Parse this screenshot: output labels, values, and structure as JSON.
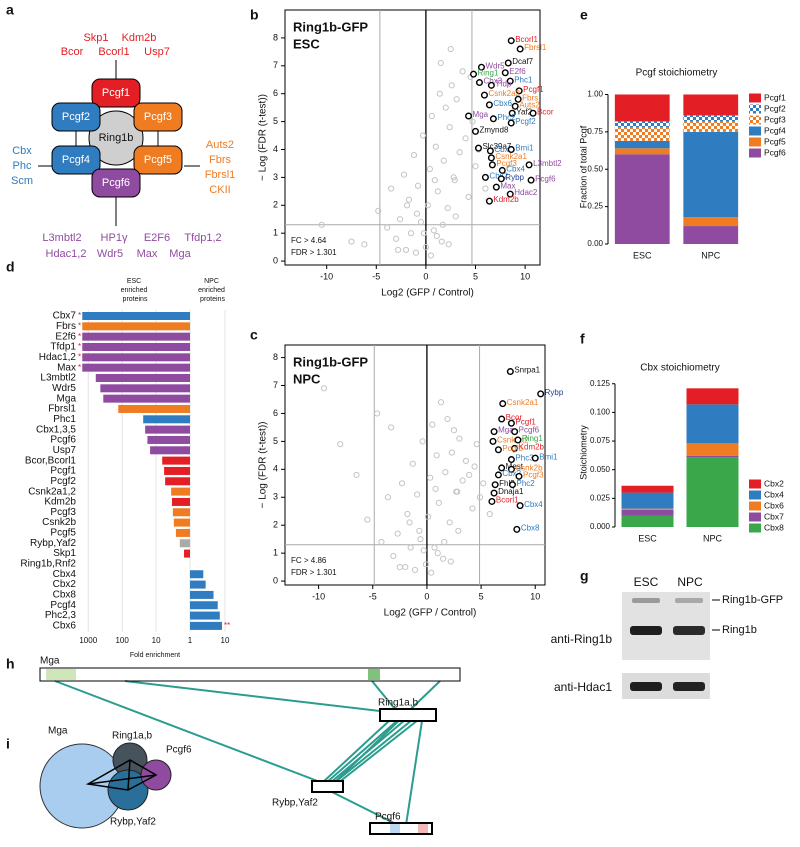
{
  "panel_labels": [
    "a",
    "b",
    "c",
    "d",
    "e",
    "f",
    "g",
    "h",
    "i"
  ],
  "complex_diagram": {
    "center": "Ring1b",
    "pcgf": [
      "Pcgf1",
      "Pcgf2",
      "Pcgf3",
      "Pcgf4",
      "Pcgf5",
      "Pcgf6"
    ],
    "top": [
      [
        "Skp1",
        "Kdm2b"
      ],
      [
        "Bcor",
        "Bcorl1",
        "Usp7"
      ]
    ],
    "left": [
      "Cbx",
      "Phc",
      "Scm"
    ],
    "right": [
      "Auts2",
      "Fbrs",
      "Fbrsl1",
      "CKII"
    ],
    "bottom": [
      [
        "L3mbtl2",
        "HP1γ",
        "E2F6",
        "Tfdp1,2"
      ],
      [
        "Hdac1,2",
        "Wdr5",
        "Max",
        "Mga"
      ]
    ]
  },
  "chart_data": [
    {
      "type": "scatter",
      "title": "Ring1b-GFP",
      "subtitle": "ESC",
      "xlabel": "Log2 (GFP / Control)",
      "ylabel": "− Log (FDR (t-test))",
      "annotations": [
        "FC > 4.64",
        "FDR > 1.301"
      ],
      "threshold_x": [
        -4.64,
        4.64
      ],
      "threshold_y": 1.301,
      "xlim": [
        -14.2,
        11.5
      ],
      "ylim": [
        -0.14,
        9.0
      ],
      "xticks": [
        -10,
        -5,
        0,
        5,
        10
      ],
      "yticks": [
        0,
        1,
        2,
        3,
        4,
        5,
        6,
        7,
        8
      ],
      "color": "#c4c4c4",
      "x": [
        -6.2,
        -4.8,
        -3.9,
        -3.5,
        -3.0,
        -2.6,
        -2.2,
        -2.0,
        -1.7,
        -1.5,
        -1.2,
        -1.0,
        -0.8,
        -0.5,
        -0.3,
        0.0,
        0.2,
        0.4,
        0.6,
        0.8,
        1.0,
        1.2,
        1.4,
        1.6,
        1.8,
        2.0,
        2.2,
        2.4,
        2.6,
        2.9,
        3.1,
        3.4,
        3.7,
        4.0,
        4.3,
        4.7,
        5.0,
        5.3,
        -1.9,
        -0.9,
        0.5,
        1.1,
        1.7,
        2.3,
        3.0,
        -2.8,
        -0.2,
        0.9,
        2.8,
        4.5,
        -10.5,
        -7.5,
        6.0,
        1.5,
        2.5
      ],
      "y": [
        0.6,
        1.8,
        1.2,
        2.6,
        0.8,
        1.5,
        3.1,
        0.4,
        2.2,
        1.0,
        3.8,
        0.3,
        2.7,
        1.4,
        4.5,
        0.5,
        2.0,
        3.3,
        5.2,
        1.1,
        4.1,
        2.5,
        6.0,
        0.7,
        3.6,
        5.5,
        1.9,
        4.8,
        6.3,
        2.9,
        5.8,
        3.9,
        6.8,
        4.4,
        2.3,
        5.0,
        3.4,
        4.0,
        2.0,
        1.7,
        0.2,
        0.9,
        1.3,
        0.6,
        1.6,
        0.4,
        1.0,
        2.9,
        3.0,
        6.6,
        1.3,
        0.7,
        2.6,
        7.1,
        7.6
      ],
      "labeled_points": [
        {
          "label": "Bcorl1",
          "color": "#e31e24",
          "x": 8.6,
          "y": 7.9
        },
        {
          "label": "Fbrsl1",
          "color": "#f07c22",
          "x": 9.5,
          "y": 7.6
        },
        {
          "label": "Dcaf7",
          "color": "#111111",
          "x": 8.3,
          "y": 7.1
        },
        {
          "label": "Wdr5",
          "color": "#8f4b9f",
          "x": 5.6,
          "y": 6.95
        },
        {
          "label": "Ring1",
          "color": "#3aa74a",
          "x": 4.8,
          "y": 6.7
        },
        {
          "label": "E2f6",
          "color": "#8f4b9f",
          "x": 8.0,
          "y": 6.75
        },
        {
          "label": "Phc1",
          "color": "#2f7cc0",
          "x": 8.5,
          "y": 6.45
        },
        {
          "label": "Cbx3",
          "color": "#8f4b9f",
          "x": 5.4,
          "y": 6.4
        },
        {
          "label": "Tfdp",
          "color": "#8f4b9f",
          "x": 6.6,
          "y": 6.3
        },
        {
          "label": "Pcgf1",
          "color": "#e31e24",
          "x": 9.4,
          "y": 6.1
        },
        {
          "label": "Csnk2a2",
          "color": "#f07c22",
          "x": 5.9,
          "y": 5.95
        },
        {
          "label": "Fbrs",
          "color": "#f07c22",
          "x": 9.3,
          "y": 5.8
        },
        {
          "label": "Cbx6",
          "color": "#2f7cc0",
          "x": 6.4,
          "y": 5.6
        },
        {
          "label": "Auts2",
          "color": "#f07c22",
          "x": 9.0,
          "y": 5.55
        },
        {
          "label": "Yaf2",
          "color": "#111111",
          "x": 8.7,
          "y": 5.3
        },
        {
          "label": "Mga",
          "color": "#8f4b9f",
          "x": 4.3,
          "y": 5.2
        },
        {
          "label": "Phc2",
          "color": "#2f7cc0",
          "x": 6.8,
          "y": 5.1
        },
        {
          "label": "Bcor",
          "color": "#e31e24",
          "x": 10.8,
          "y": 5.3
        },
        {
          "label": "Pcgf2",
          "color": "#2f7cc0",
          "x": 8.6,
          "y": 4.95
        },
        {
          "label": "Zmynd8",
          "color": "#111111",
          "x": 5.0,
          "y": 4.65
        },
        {
          "label": "Slc39a7",
          "color": "#111111",
          "x": 5.3,
          "y": 4.05
        },
        {
          "label": "Cbx7",
          "color": "#2f7cc0",
          "x": 6.5,
          "y": 3.95
        },
        {
          "label": "Bmi1",
          "color": "#2f7cc0",
          "x": 8.6,
          "y": 4.0
        },
        {
          "label": "Csnk2a1",
          "color": "#f07c22",
          "x": 6.6,
          "y": 3.7
        },
        {
          "label": "Pcgf3",
          "color": "#f07c22",
          "x": 6.7,
          "y": 3.45
        },
        {
          "label": "L3mbtl2",
          "color": "#8f4b9f",
          "x": 10.4,
          "y": 3.45
        },
        {
          "label": "Cbx4",
          "color": "#2f7cc0",
          "x": 7.7,
          "y": 3.25
        },
        {
          "label": "Cbx2",
          "color": "#2f7cc0",
          "x": 6.0,
          "y": 3.0
        },
        {
          "label": "Rybp",
          "color": "#1f3f8f",
          "x": 7.6,
          "y": 2.95
        },
        {
          "label": "Pcgf6",
          "color": "#8f4b9f",
          "x": 10.6,
          "y": 2.9
        },
        {
          "label": "Max",
          "color": "#8f4b9f",
          "x": 7.1,
          "y": 2.65
        },
        {
          "label": "Hdac2",
          "color": "#8f4b9f",
          "x": 8.5,
          "y": 2.4
        },
        {
          "label": "Kdm2b",
          "color": "#e31e24",
          "x": 6.4,
          "y": 2.15
        }
      ]
    },
    {
      "type": "scatter",
      "title": "Ring1b-GFP",
      "subtitle": "NPC",
      "xlabel": "Log2 (GFP / Control)",
      "ylabel": "− Log (FDR (t-test))",
      "annotations": [
        "FC > 4.86",
        "FDR > 1.301"
      ],
      "threshold_x": [
        -4.86,
        4.86
      ],
      "threshold_y": 1.301,
      "xlim": [
        -13.1,
        10.9
      ],
      "ylim": [
        -0.14,
        8.45
      ],
      "xticks": [
        -10,
        -5,
        0,
        5,
        10
      ],
      "yticks": [
        0,
        1,
        2,
        3,
        4,
        5,
        6,
        7,
        8
      ],
      "color": "#c4c4c4",
      "x": [
        -8.0,
        -5.5,
        -4.2,
        -3.6,
        -3.1,
        -2.7,
        -2.3,
        -2.0,
        -1.8,
        -1.5,
        -1.3,
        -1.1,
        -0.9,
        -0.6,
        -0.4,
        -0.1,
        0.1,
        0.3,
        0.5,
        0.7,
        0.9,
        1.1,
        1.3,
        1.5,
        1.7,
        1.9,
        2.1,
        2.3,
        2.5,
        2.8,
        3.0,
        3.3,
        3.6,
        3.9,
        4.2,
        4.6,
        4.9,
        5.2,
        -1.6,
        -0.7,
        0.4,
        1.0,
        1.6,
        2.2,
        2.9,
        -2.5,
        -0.3,
        0.8,
        2.7,
        4.4,
        -9.5,
        -6.5,
        5.8,
        -3.3,
        -4.6
      ],
      "y": [
        4.9,
        2.2,
        1.4,
        3.0,
        0.9,
        1.7,
        3.5,
        0.5,
        2.4,
        1.2,
        4.2,
        0.4,
        3.1,
        1.5,
        5.0,
        0.6,
        2.3,
        3.7,
        5.6,
        1.2,
        4.5,
        2.8,
        6.4,
        0.8,
        3.9,
        5.8,
        2.1,
        4.6,
        5.4,
        3.2,
        5.1,
        3.6,
        4.3,
        3.8,
        2.6,
        4.9,
        3.0,
        3.5,
        2.1,
        1.8,
        0.3,
        1.0,
        1.4,
        0.7,
        1.8,
        0.5,
        1.1,
        3.3,
        3.2,
        4.1,
        6.9,
        3.8,
        2.4,
        5.5,
        6.0
      ],
      "labeled_points": [
        {
          "label": "Snrpa1",
          "color": "#111111",
          "x": 7.7,
          "y": 7.5
        },
        {
          "label": "Rybp",
          "color": "#1f3f8f",
          "x": 10.5,
          "y": 6.7
        },
        {
          "label": "Csnk2a1",
          "color": "#f07c22",
          "x": 7.0,
          "y": 6.35
        },
        {
          "label": "Bcor",
          "color": "#e31e24",
          "x": 6.9,
          "y": 5.8
        },
        {
          "label": "Pcgf1",
          "color": "#e31e24",
          "x": 7.8,
          "y": 5.65
        },
        {
          "label": "Mga",
          "color": "#8f4b9f",
          "x": 6.2,
          "y": 5.35
        },
        {
          "label": "Pcgf6",
          "color": "#8f4b9f",
          "x": 8.1,
          "y": 5.35
        },
        {
          "label": "Csnk2a2",
          "color": "#f07c22",
          "x": 6.1,
          "y": 5.0
        },
        {
          "label": "Ring1",
          "color": "#3aa74a",
          "x": 8.4,
          "y": 5.05
        },
        {
          "label": "Kdm2b",
          "color": "#e31e24",
          "x": 8.1,
          "y": 4.75
        },
        {
          "label": "Pcgf5",
          "color": "#f07c22",
          "x": 6.6,
          "y": 4.7
        },
        {
          "label": "Phc3",
          "color": "#2f7cc0",
          "x": 7.8,
          "y": 4.35
        },
        {
          "label": "Bmi1",
          "color": "#2f7cc0",
          "x": 10.0,
          "y": 4.4
        },
        {
          "label": "Mest",
          "color": "#111111",
          "x": 6.9,
          "y": 4.05
        },
        {
          "label": "Csnk2b",
          "color": "#f07c22",
          "x": 7.8,
          "y": 4.0
        },
        {
          "label": "Cbx2",
          "color": "#2f7cc0",
          "x": 6.6,
          "y": 3.8
        },
        {
          "label": "Pcgf3",
          "color": "#f07c22",
          "x": 8.5,
          "y": 3.75
        },
        {
          "label": "Fhl3",
          "color": "#111111",
          "x": 6.3,
          "y": 3.45
        },
        {
          "label": "Phc2",
          "color": "#2f7cc0",
          "x": 7.9,
          "y": 3.45
        },
        {
          "label": "Dnaja1",
          "color": "#111111",
          "x": 6.2,
          "y": 3.15
        },
        {
          "label": "Bcorl1",
          "color": "#e31e24",
          "x": 6.0,
          "y": 2.85
        },
        {
          "label": "Cbx4",
          "color": "#2f7cc0",
          "x": 8.6,
          "y": 2.7
        },
        {
          "label": "Cbx8",
          "color": "#2f7cc0",
          "x": 8.3,
          "y": 1.85
        }
      ]
    },
    {
      "type": "bar",
      "orientation": "horizontal",
      "log_scale": true,
      "grid": true,
      "xlabel": "Fold enrichment",
      "categories": [
        "Cbx7",
        "Fbrs",
        "E2f6",
        "Tfdp1",
        "Hdac1,2",
        "Max",
        "L3mbtl2",
        "Wdr5",
        "Mga",
        "Fbrsl1",
        "Phc1",
        "Cbx1,3,5",
        "Pcgf6",
        "Usp7",
        "Bcor,Bcorl1",
        "Pcgf1",
        "Pcgf2",
        "Csnk2a1,2",
        "Kdm2b",
        "Pcgf3",
        "Csnk2b",
        "Pcgf5",
        "Rybp,Yaf2",
        "Skp1",
        "Ring1b,Rnf2",
        "Cbx4",
        "Cbx2",
        "Cbx8",
        "Pcgf4",
        "Phc2,3",
        "Cbx6"
      ],
      "colors": [
        "#2f7cc0",
        "#f07c22",
        "#8f4b9f",
        "#8f4b9f",
        "#8f4b9f",
        "#8f4b9f",
        "#8f4b9f",
        "#8f4b9f",
        "#8f4b9f",
        "#f07c22",
        "#2f7cc0",
        "#8f4b9f",
        "#8f4b9f",
        "#8f4b9f",
        "#e31e24",
        "#e31e24",
        "#e31e24",
        "#f07c22",
        "#e31e24",
        "#f07c22",
        "#f07c22",
        "#f07c22",
        "#aaaaaa",
        "#e31e24",
        null,
        "#2f7cc0",
        "#2f7cc0",
        "#2f7cc0",
        "#2f7cc0",
        "#2f7cc0",
        "#2f7cc0"
      ],
      "value_notes": [
        "*",
        "*",
        "*",
        "*",
        "*",
        "*",
        null,
        null,
        null,
        null,
        null,
        null,
        null,
        null,
        null,
        null,
        null,
        null,
        null,
        null,
        null,
        null,
        null,
        null,
        null,
        null,
        null,
        null,
        null,
        null,
        "**"
      ],
      "series": [
        {
          "name": "ESC enriched proteins",
          "direction": "left",
          "xlim": [
            1,
            1750
          ],
          "xticks": [
            1000,
            100,
            10,
            1
          ],
          "values": [
            1500,
            1500,
            1500,
            1500,
            1500,
            1500,
            600,
            440,
            360,
            130,
            24,
            21,
            18,
            15,
            6.6,
            5.8,
            5.4,
            3.6,
            3.4,
            3.2,
            3.0,
            2.6,
            2.0,
            1.5,
            null,
            null,
            null,
            null,
            null,
            null,
            null
          ]
        },
        {
          "name": "NPC enriched proteins",
          "direction": "right",
          "xlim": [
            1,
            10
          ],
          "xticks": [
            10
          ],
          "values": [
            null,
            null,
            null,
            null,
            null,
            null,
            null,
            null,
            null,
            null,
            null,
            null,
            null,
            null,
            null,
            null,
            null,
            null,
            null,
            null,
            null,
            null,
            null,
            null,
            null,
            2.4,
            2.8,
            4.7,
            6.2,
            7.1,
            8.2
          ]
        }
      ]
    },
    {
      "type": "stacked_bar",
      "title": "Pcgf stoichiometry",
      "ylabel": "Fraction of total Pcgf",
      "categories": [
        "ESC",
        "NPC"
      ],
      "ylim": [
        0,
        1.03
      ],
      "yticks": [
        {
          "value": 0,
          "label": "0.00"
        },
        {
          "value": 0.25,
          "label": "0.25"
        },
        {
          "value": 0.5,
          "label": "0.50"
        },
        {
          "value": 0.75,
          "label": "0.75"
        },
        {
          "value": 1,
          "label": "1.00"
        }
      ],
      "series": [
        {
          "name": "Pcgf1",
          "color": "#e31e24",
          "values": [
            0.18,
            0.14
          ]
        },
        {
          "name": "Pcgf2",
          "color": "#2f7cc0",
          "pattern": "checker",
          "values": [
            0.04,
            0.04
          ]
        },
        {
          "name": "Pcgf3",
          "color": "#f07c22",
          "pattern": "checker",
          "values": [
            0.09,
            0.07
          ]
        },
        {
          "name": "Pcgf4",
          "color": "#2f7cc0",
          "values": [
            0.05,
            0.57
          ]
        },
        {
          "name": "Pcgf5",
          "color": "#f07c22",
          "values": [
            0.04,
            0.06
          ]
        },
        {
          "name": "Pcgf6",
          "color": "#8f4b9f",
          "values": [
            0.6,
            0.12
          ]
        }
      ]
    },
    {
      "type": "stacked_bar",
      "title": "Cbx stoichiometry",
      "ylabel": "Stoichiometry",
      "categories": [
        "ESC",
        "NPC"
      ],
      "ylim": [
        0,
        0.13
      ],
      "yticks": [
        {
          "value": 0,
          "label": "0.000"
        },
        {
          "value": 0.025,
          "label": "0.025"
        },
        {
          "value": 0.05,
          "label": "0.050"
        },
        {
          "value": 0.075,
          "label": "0.075"
        },
        {
          "value": 0.1,
          "label": "0.100"
        },
        {
          "value": 0.125,
          "label": "0.125"
        }
      ],
      "series": [
        {
          "name": "Cbx2",
          "color": "#e31e24",
          "values": [
            0.006,
            0.014
          ]
        },
        {
          "name": "Cbx4",
          "color": "#2f7cc0",
          "values": [
            0.014,
            0.034
          ]
        },
        {
          "name": "Cbx6",
          "color": "#f07c22",
          "values": [
            0.001,
            0.011
          ]
        },
        {
          "name": "Cbx7",
          "color": "#8f4b9f",
          "values": [
            0.005,
            0.001
          ]
        },
        {
          "name": "Cbx8",
          "color": "#3aa74a",
          "values": [
            0.01,
            0.061
          ]
        }
      ]
    }
  ],
  "western_blot": {
    "lanes": [
      "ESC",
      "NPC"
    ],
    "antibodies": [
      "anti-Ring1b",
      "anti-Hdac1"
    ],
    "bands": [
      "Ring1b-GFP",
      "Ring1b"
    ]
  },
  "crosslink_map": {
    "proteins": [
      "Mga",
      "Ring1a,b",
      "Rybp,Yaf2",
      "Pcgf6"
    ]
  },
  "subunit_overlap": {
    "proteins": [
      "Mga",
      "Ring1a,b",
      "Pcgf6",
      "Rybp,Yaf2"
    ]
  }
}
